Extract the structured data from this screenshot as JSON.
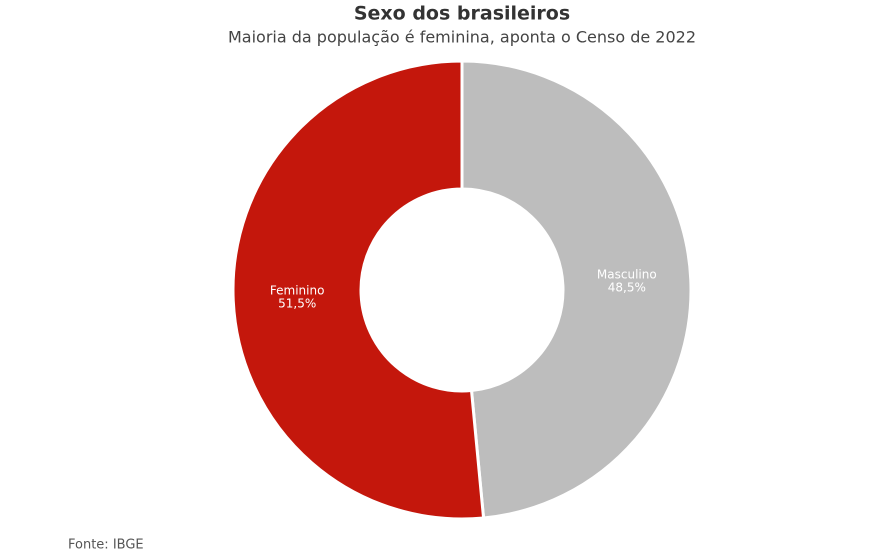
{
  "chart_data": {
    "type": "donut",
    "title": "Sexo dos brasileiros",
    "subtitle": "Maioria da população é feminina, aponta o Censo de 2022",
    "categories": [
      "Masculino",
      "Feminino"
    ],
    "values": [
      48.5,
      51.5
    ],
    "value_labels": [
      "48,5%",
      "51,5%"
    ],
    "colors": [
      "#bdbdbd",
      "#c4170c"
    ],
    "source": "Fonte: IBGE"
  }
}
